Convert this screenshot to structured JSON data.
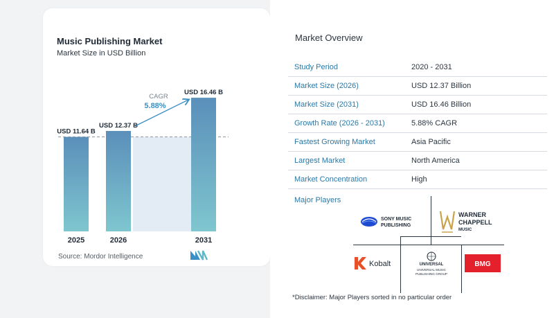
{
  "chart": {
    "title": "Music Publishing Market",
    "subtitle": "Market Size in USD Billion",
    "source": "Source:  Mordor Intelligence",
    "cagr_label": "CAGR",
    "cagr_value": "5.88%"
  },
  "chart_data": {
    "type": "bar",
    "categories": [
      "2025",
      "2026",
      "2031"
    ],
    "values": [
      11.64,
      12.37,
      16.46
    ],
    "data_labels": [
      "USD 11.64 B",
      "USD 12.37 B",
      "USD 16.46 B"
    ],
    "title": "Music Publishing Market",
    "subtitle": "Market Size in USD Billion",
    "ylim": [
      0,
      17
    ],
    "grid": false,
    "annotation": "CAGR 5.88%"
  },
  "overview": {
    "title": "Market Overview",
    "rows": [
      {
        "label": "Study Period",
        "value": "2020 - 2031"
      },
      {
        "label": "Market Size (2026)",
        "value": "USD 12.37 Billion"
      },
      {
        "label": "Market Size (2031)",
        "value": "USD 16.46 Billion"
      },
      {
        "label": "Growth Rate (2026 - 2031)",
        "value": "5.88% CAGR"
      },
      {
        "label": "Fastest Growing Market",
        "value": "Asia Pacific"
      },
      {
        "label": "Largest Market",
        "value": "North America"
      },
      {
        "label": "Market Concentration",
        "value": "High"
      }
    ]
  },
  "players": {
    "title": "Major Players",
    "sony_line1": "SONY MUSIC",
    "sony_line2": "PUBLISHING",
    "warner_line1": "WARNER",
    "warner_line2": "CHAPPELL",
    "warner_line3": "MUSIC",
    "kobalt": "Kobalt",
    "umpg_line1": "UNIVERSAL",
    "umpg_line2": "UNIVERSAL MUSIC",
    "umpg_line3": "PUBLISHING GROUP",
    "bmg": "BMG"
  },
  "disclaimer": "*Disclaimer: Major Players sorted in no particular order",
  "colors": {
    "bar_top": "#5a8fba",
    "bar_bottom": "#7fc6cf",
    "label_blue": "#2b78a6",
    "cagr": "#3a8fc4"
  }
}
